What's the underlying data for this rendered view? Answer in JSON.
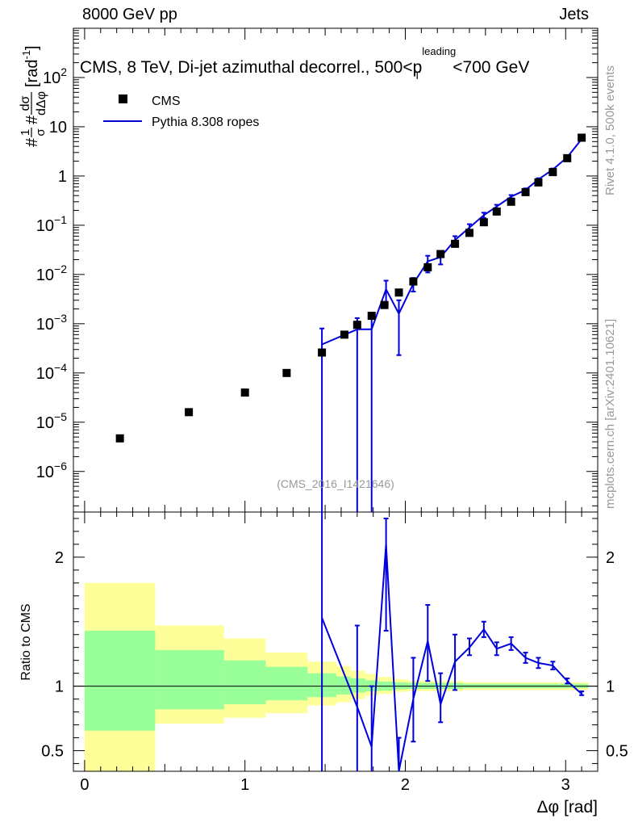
{
  "header": {
    "left": "8000 GeV pp",
    "right": "Jets"
  },
  "side_labels": {
    "rivet": "Rivet 4.1.0,  500k events",
    "source": "mcplots.cern.ch [arXiv:2401.10621]"
  },
  "chart_data": [
    {
      "panel": "main",
      "type": "scatter",
      "title": "CMS, 8 TeV, Di-jet azimuthal decorrel., 500<p_T^leading<700 GeV",
      "title_parts": {
        "pre": "CMS, 8 TeV, Di-jet azimuthal decorrel., 500<p",
        "sup": "leading",
        "sub": "T",
        "post": "<700 GeV"
      },
      "watermark": "(CMS_2016_I1421646)",
      "ylabel": "#1/σ #dσ/dΔφ [rad^-1]",
      "ylabel_parts": {
        "a": "#",
        "frac1_num": "1",
        "frac1_den": "σ",
        "b": "#",
        "frac2_num": "dσ",
        "frac2_den": "dΔφ",
        "unit": "[rad",
        "unit_sup": "-1",
        "unit_end": "]"
      },
      "yscale": "log",
      "xlim": [
        -0.07,
        3.2
      ],
      "ylim": [
        1.5e-07,
        1000
      ],
      "y_ticks": [
        1e-06,
        1e-05,
        0.0001,
        0.001,
        0.01,
        0.1,
        1,
        10,
        100
      ],
      "y_tick_labels": [
        {
          "base": "10",
          "exp": "−6"
        },
        {
          "base": "10",
          "exp": "−5"
        },
        {
          "base": "10",
          "exp": "−4"
        },
        {
          "base": "10",
          "exp": "−3"
        },
        {
          "base": "10",
          "exp": "−2"
        },
        {
          "base": "10",
          "exp": "−1"
        },
        {
          "base": "1",
          "exp": ""
        },
        {
          "base": "10",
          "exp": ""
        },
        {
          "base": "10",
          "exp": "2"
        }
      ],
      "legend": {
        "position": "top-left",
        "entries": [
          "CMS",
          "Pythia 8.308 ropes"
        ]
      },
      "series": [
        {
          "name": "CMS",
          "color": "#000000",
          "x": [
            0.22,
            0.65,
            1.0,
            1.26,
            1.48,
            1.62,
            1.7,
            1.79,
            1.87,
            1.96,
            2.05,
            2.14,
            2.22,
            2.31,
            2.4,
            2.49,
            2.57,
            2.66,
            2.75,
            2.83,
            2.92,
            3.01,
            3.1
          ],
          "y": [
            4.7e-06,
            1.6e-05,
            4e-05,
            0.0001,
            0.00026,
            0.0006,
            0.00095,
            0.00145,
            0.0024,
            0.0043,
            0.0072,
            0.014,
            0.026,
            0.042,
            0.07,
            0.115,
            0.19,
            0.3,
            0.47,
            0.74,
            1.2,
            2.3,
            6.0
          ]
        },
        {
          "name": "Pythia 8.308 ropes",
          "color": "#0000dd",
          "x": [
            1.48,
            1.7,
            1.79,
            1.88,
            1.96,
            2.05,
            2.14,
            2.22,
            2.31,
            2.4,
            2.49,
            2.57,
            2.66,
            2.75,
            2.83,
            2.92,
            3.01,
            3.1
          ],
          "y": [
            0.00038,
            0.00077,
            0.00077,
            0.005,
            0.0016,
            0.0065,
            0.0185,
            0.0225,
            0.05,
            0.09,
            0.16,
            0.24,
            0.38,
            0.52,
            0.85,
            1.35,
            2.4,
            5.6
          ],
          "y_lo": [
            1e-09,
            1e-09,
            1e-09,
            0.0025,
            0.00023,
            0.0045,
            0.011,
            0.016,
            0.04,
            0.075,
            0.14,
            0.22,
            0.35,
            0.48,
            0.8,
            1.28,
            2.3,
            5.2
          ],
          "y_hi": [
            0.0008,
            0.0013,
            0.0013,
            0.0075,
            0.003,
            0.0085,
            0.024,
            0.029,
            0.06,
            0.105,
            0.18,
            0.26,
            0.41,
            0.56,
            0.9,
            1.42,
            2.5,
            6.0
          ]
        }
      ]
    },
    {
      "panel": "ratio",
      "type": "line",
      "ylabel": "Ratio to CMS",
      "xlabel": "Δφ [rad]",
      "xlim": [
        -0.07,
        3.2
      ],
      "ylim": [
        0.34,
        2.35
      ],
      "x_ticks": [
        0,
        1,
        2,
        3
      ],
      "x_tick_labels": [
        "0",
        "1",
        "2",
        "3"
      ],
      "y_ticks": [
        0.5,
        1,
        2
      ],
      "y_tick_labels": [
        "0.5",
        "1",
        "2"
      ],
      "reference_line": 1,
      "bands": {
        "colors": {
          "inner": "#99ff99",
          "outer": "#ffff99"
        },
        "bins": [
          {
            "x0": 0.0,
            "x1": 0.44,
            "inner": [
              0.655,
              1.43
            ],
            "outer": [
              0.33,
              1.8
            ]
          },
          {
            "x0": 0.44,
            "x1": 0.87,
            "inner": [
              0.82,
              1.28
            ],
            "outer": [
              0.71,
              1.47
            ]
          },
          {
            "x0": 0.87,
            "x1": 1.13,
            "inner": [
              0.86,
              1.2
            ],
            "outer": [
              0.755,
              1.37
            ]
          },
          {
            "x0": 1.13,
            "x1": 1.39,
            "inner": [
              0.89,
              1.15
            ],
            "outer": [
              0.79,
              1.26
            ]
          },
          {
            "x0": 1.39,
            "x1": 1.57,
            "inner": [
              0.915,
              1.1
            ],
            "outer": [
              0.85,
              1.19
            ]
          },
          {
            "x0": 1.57,
            "x1": 1.66,
            "inner": [
              0.935,
              1.075
            ],
            "outer": [
              0.875,
              1.155
            ]
          },
          {
            "x0": 1.66,
            "x1": 1.75,
            "inner": [
              0.95,
              1.06
            ],
            "outer": [
              0.9,
              1.12
            ]
          },
          {
            "x0": 1.75,
            "x1": 1.83,
            "inner": [
              0.96,
              1.045
            ],
            "outer": [
              0.925,
              1.095
            ]
          },
          {
            "x0": 1.83,
            "x1": 1.92,
            "inner": [
              0.965,
              1.035
            ],
            "outer": [
              0.94,
              1.07
            ]
          },
          {
            "x0": 1.92,
            "x1": 2.01,
            "inner": [
              0.975,
              1.03
            ],
            "outer": [
              0.955,
              1.055
            ]
          },
          {
            "x0": 2.01,
            "x1": 2.36,
            "inner": [
              0.978,
              1.025
            ],
            "outer": [
              0.962,
              1.042
            ]
          },
          {
            "x0": 2.36,
            "x1": 3.14,
            "inner": [
              0.985,
              1.018
            ],
            "outer": [
              0.97,
              1.03
            ]
          }
        ]
      },
      "series": [
        {
          "name": "Pythia 8.308 ropes",
          "color": "#0000dd",
          "x": [
            1.48,
            1.7,
            1.79,
            1.88,
            1.96,
            2.05,
            2.14,
            2.22,
            2.31,
            2.4,
            2.49,
            2.57,
            2.66,
            2.75,
            2.83,
            2.92,
            3.01,
            3.1
          ],
          "y": [
            1.53,
            0.84,
            0.53,
            2.1,
            0.3,
            0.9,
            1.35,
            0.86,
            1.19,
            1.3,
            1.44,
            1.29,
            1.33,
            1.22,
            1.18,
            1.16,
            1.04,
            0.94
          ],
          "y_lo": [
            0.01,
            0.01,
            0.01,
            1.43,
            0.01,
            0.57,
            1.04,
            0.72,
            0.97,
            1.24,
            1.38,
            1.24,
            1.28,
            1.18,
            1.14,
            1.13,
            1.02,
            0.93
          ],
          "y_hi": [
            3.0,
            1.47,
            1.0,
            2.3,
            0.6,
            1.22,
            1.63,
            1.1,
            1.4,
            1.37,
            1.5,
            1.34,
            1.38,
            1.26,
            1.22,
            1.19,
            1.06,
            0.96
          ]
        }
      ]
    }
  ]
}
